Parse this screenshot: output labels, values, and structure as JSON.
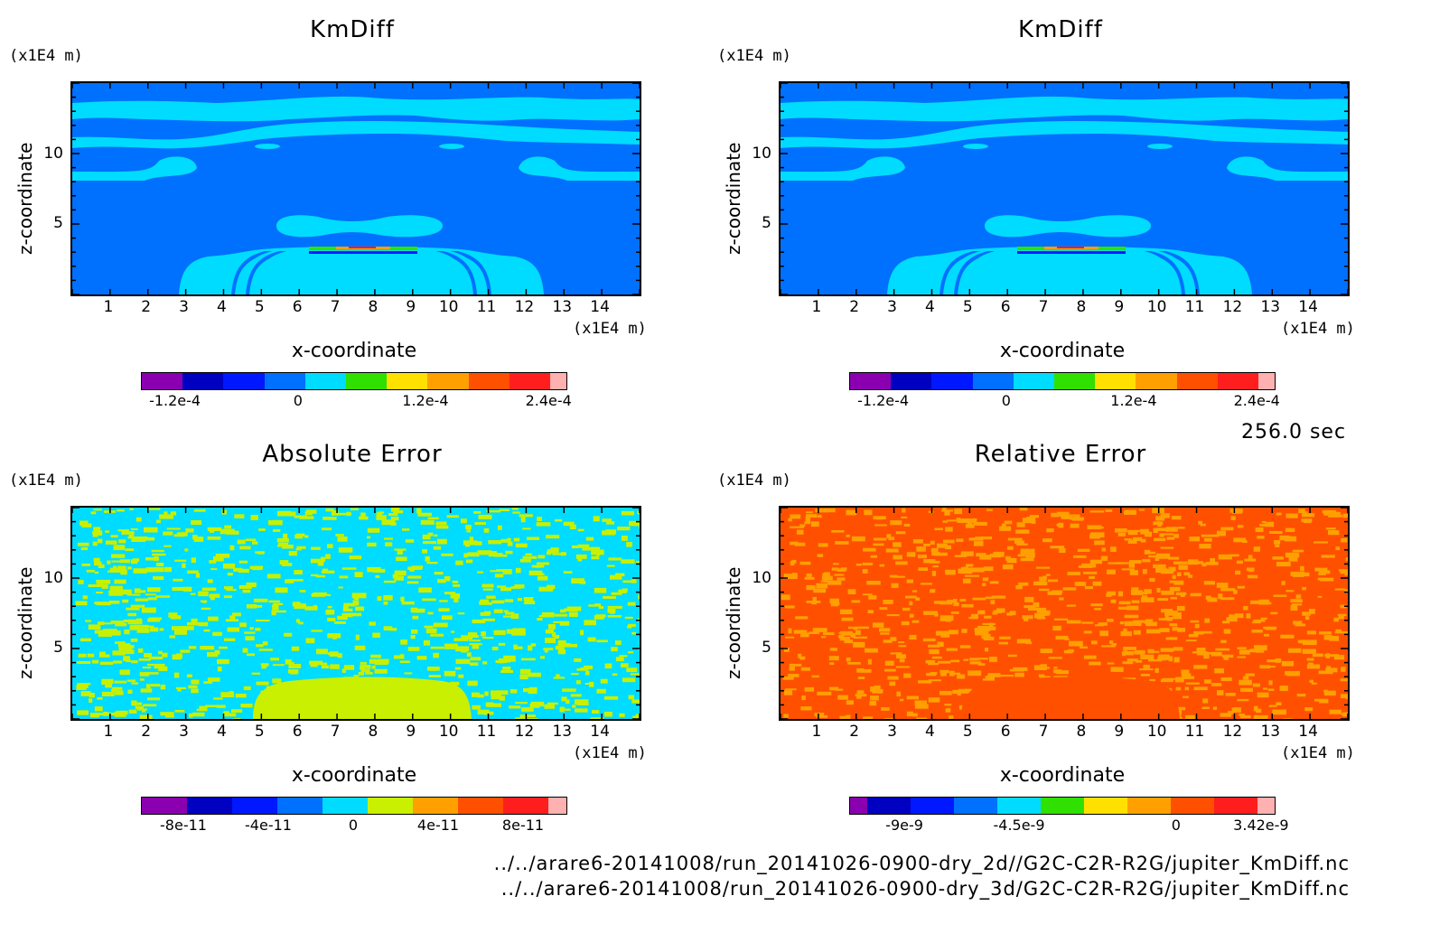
{
  "time_label": "256.0 sec",
  "footer_lines": [
    "../../arare6-20141008/run_20141026-0900-dry_2d//G2C-C2R-R2G/jupiter_KmDiff.nc",
    "../../arare6-20141008/run_20141026-0900-dry_3d/G2C-C2R-R2G/jupiter_KmDiff.nc"
  ],
  "unit_label": "(x1E4 m)",
  "colors": {
    "palette": [
      "#8a00b0",
      "#0000c0",
      "#0018ff",
      "#0080ff",
      "#00d8ff",
      "#30e000",
      "#ffe000",
      "#ffa000",
      "#ff5000",
      "#ff1e1e",
      "#ffb0b0"
    ],
    "dark_blue": "#0070ff",
    "light_blue": "#00dcff",
    "yellow_green": "#c8f000",
    "orange": "#ff9a00",
    "red_orange": "#ff5000"
  },
  "chart_data": [
    {
      "type": "heatmap",
      "title": "KmDiff",
      "xlabel": "x-coordinate",
      "ylabel": "z-coordinate",
      "x_unit": "(x1E4 m)",
      "y_unit": "(x1E4 m)",
      "xticks": [
        "1",
        "2",
        "3",
        "4",
        "5",
        "6",
        "7",
        "8",
        "9",
        "10",
        "11",
        "12",
        "13",
        "14"
      ],
      "yticks": [
        "5",
        "10"
      ],
      "xlim": [
        0,
        15
      ],
      "ylim": [
        0,
        15
      ],
      "colorbar_labels": [
        "-1.2e-4",
        "0",
        "1.2e-4",
        "2.4e-4"
      ]
    },
    {
      "type": "heatmap",
      "title": "KmDiff",
      "xlabel": "x-coordinate",
      "ylabel": "z-coordinate",
      "x_unit": "(x1E4 m)",
      "y_unit": "(x1E4 m)",
      "xticks": [
        "1",
        "2",
        "3",
        "4",
        "5",
        "6",
        "7",
        "8",
        "9",
        "10",
        "11",
        "12",
        "13",
        "14"
      ],
      "yticks": [
        "5",
        "10"
      ],
      "xlim": [
        0,
        15
      ],
      "ylim": [
        0,
        15
      ],
      "colorbar_labels": [
        "-1.2e-4",
        "0",
        "1.2e-4",
        "2.4e-4"
      ]
    },
    {
      "type": "heatmap",
      "title": "Absolute Error",
      "xlabel": "x-coordinate",
      "ylabel": "z-coordinate",
      "x_unit": "(x1E4 m)",
      "y_unit": "(x1E4 m)",
      "xticks": [
        "1",
        "2",
        "3",
        "4",
        "5",
        "6",
        "7",
        "8",
        "9",
        "10",
        "11",
        "12",
        "13",
        "14"
      ],
      "yticks": [
        "5",
        "10"
      ],
      "xlim": [
        0,
        15
      ],
      "ylim": [
        0,
        15
      ],
      "colorbar_labels": [
        "-8e-11",
        "-4e-11",
        "0",
        "4e-11",
        "8e-11"
      ]
    },
    {
      "type": "heatmap",
      "title": "Relative Error",
      "xlabel": "x-coordinate",
      "ylabel": "z-coordinate",
      "x_unit": "(x1E4 m)",
      "y_unit": "(x1E4 m)",
      "xticks": [
        "1",
        "2",
        "3",
        "4",
        "5",
        "6",
        "7",
        "8",
        "9",
        "10",
        "11",
        "12",
        "13",
        "14"
      ],
      "yticks": [
        "5",
        "10"
      ],
      "xlim": [
        0,
        15
      ],
      "ylim": [
        0,
        15
      ],
      "colorbar_labels": [
        "-9e-9",
        "-4.5e-9",
        "0",
        "3.42e-9"
      ]
    }
  ]
}
